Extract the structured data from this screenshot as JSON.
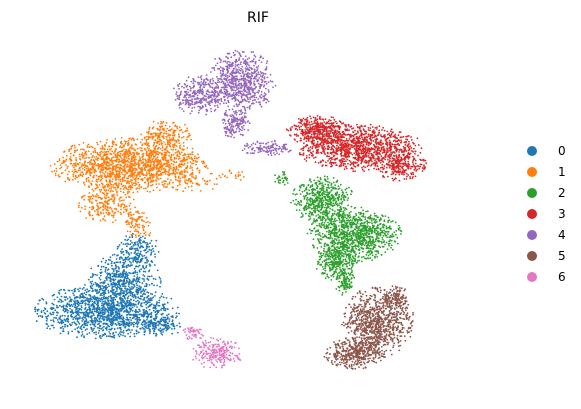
{
  "chart_data": {
    "type": "scatter",
    "title": "RIF",
    "xlabel": "",
    "ylabel": "",
    "grid": false,
    "axes_visible": false,
    "legend_position": "right",
    "marker_size": 1,
    "xlim": [
      0,
      100
    ],
    "ylim": [
      0,
      100
    ],
    "series": [
      {
        "name": "0",
        "color": "#1f77b4",
        "regions": [
          {
            "cx": 17,
            "cy": 22,
            "rx": 14,
            "ry": 7,
            "n": 1400
          },
          {
            "cx": 21,
            "cy": 31,
            "rx": 7,
            "ry": 7,
            "n": 500
          },
          {
            "cx": 24,
            "cy": 40,
            "rx": 4,
            "ry": 4,
            "n": 150
          },
          {
            "cx": 29,
            "cy": 18,
            "rx": 4,
            "ry": 3,
            "n": 120
          }
        ]
      },
      {
        "name": "1",
        "color": "#ff7f0e",
        "regions": [
          {
            "cx": 22,
            "cy": 64,
            "rx": 15,
            "ry": 7,
            "n": 1500
          },
          {
            "cx": 30,
            "cy": 72,
            "rx": 5,
            "ry": 5,
            "n": 220
          },
          {
            "cx": 17,
            "cy": 53,
            "rx": 6,
            "ry": 5,
            "n": 220
          },
          {
            "cx": 24,
            "cy": 47,
            "rx": 3,
            "ry": 4,
            "n": 90
          },
          {
            "cx": 35,
            "cy": 60,
            "rx": 6,
            "ry": 4,
            "n": 70
          },
          {
            "cx": 45,
            "cy": 61,
            "rx": 3,
            "ry": 1.5,
            "n": 20
          }
        ]
      },
      {
        "name": "2",
        "color": "#2ca02c",
        "regions": [
          {
            "cx": 71,
            "cy": 44,
            "rx": 9,
            "ry": 7,
            "n": 1000
          },
          {
            "cx": 64,
            "cy": 54,
            "rx": 6,
            "ry": 6,
            "n": 500
          },
          {
            "cx": 67,
            "cy": 36,
            "rx": 4,
            "ry": 5,
            "n": 300
          },
          {
            "cx": 69,
            "cy": 30,
            "rx": 2,
            "ry": 3,
            "n": 80
          },
          {
            "cx": 55,
            "cy": 60,
            "rx": 1.5,
            "ry": 2,
            "n": 30
          }
        ]
      },
      {
        "name": "3",
        "color": "#d62728",
        "regions": [
          {
            "cx": 72,
            "cy": 69,
            "rx": 12,
            "ry": 6,
            "n": 1100
          },
          {
            "cx": 63,
            "cy": 74,
            "rx": 6,
            "ry": 4,
            "n": 400
          },
          {
            "cx": 81,
            "cy": 64,
            "rx": 5,
            "ry": 4,
            "n": 250
          }
        ]
      },
      {
        "name": "4",
        "color": "#9467bd",
        "regions": [
          {
            "cx": 46,
            "cy": 88,
            "rx": 7,
            "ry": 8,
            "n": 700
          },
          {
            "cx": 37,
            "cy": 84,
            "rx": 5,
            "ry": 5,
            "n": 300
          },
          {
            "cx": 45,
            "cy": 76,
            "rx": 3,
            "ry": 4,
            "n": 150
          },
          {
            "cx": 52,
            "cy": 69,
            "rx": 5,
            "ry": 2,
            "n": 120
          }
        ]
      },
      {
        "name": "5",
        "color": "#8c564b",
        "regions": [
          {
            "cx": 76,
            "cy": 19,
            "rx": 7,
            "ry": 9,
            "n": 900
          },
          {
            "cx": 71,
            "cy": 10,
            "rx": 6,
            "ry": 4,
            "n": 400
          },
          {
            "cx": 80,
            "cy": 26,
            "rx": 3,
            "ry": 3,
            "n": 100
          }
        ]
      },
      {
        "name": "6",
        "color": "#e377c2",
        "regions": [
          {
            "cx": 41,
            "cy": 10,
            "rx": 5,
            "ry": 4,
            "n": 220
          },
          {
            "cx": 36,
            "cy": 16,
            "rx": 2,
            "ry": 2,
            "n": 50
          }
        ]
      }
    ]
  }
}
